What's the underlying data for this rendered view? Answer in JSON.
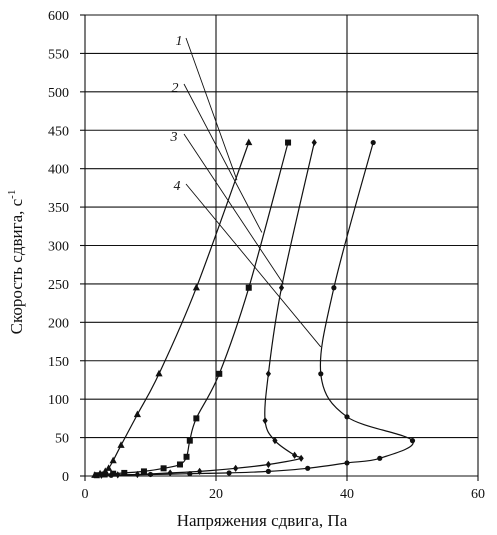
{
  "chart_data": {
    "type": "line",
    "xlabel": "Напряжения сдвига, Па",
    "ylabel": "Скорость сдвига, с",
    "ylabel_superscript": "-1",
    "xlim": [
      0,
      60
    ],
    "ylim": [
      0,
      600
    ],
    "xticks": [
      "0",
      "20",
      "40",
      "60"
    ],
    "yticks": [
      "0",
      "50",
      "100",
      "150",
      "200",
      "250",
      "300",
      "350",
      "400",
      "450",
      "500",
      "550",
      "600"
    ],
    "grid": "horizontal and vertical",
    "series": [
      {
        "name": "1",
        "marker": "triangle",
        "points": [
          [
            1.5,
            1
          ],
          [
            2.3,
            3
          ],
          [
            3.1,
            6
          ],
          [
            3.6,
            10
          ],
          [
            4.3,
            20
          ],
          [
            5.5,
            40
          ],
          [
            8,
            80
          ],
          [
            11.3,
            133
          ],
          [
            17,
            245
          ],
          [
            25,
            434
          ]
        ]
      },
      {
        "name": "2",
        "marker": "square",
        "points": [
          [
            1.8,
            1
          ],
          [
            3,
            2
          ],
          [
            4.3,
            3
          ],
          [
            6,
            4
          ],
          [
            9,
            6
          ],
          [
            12,
            10
          ],
          [
            14.5,
            15
          ],
          [
            15.5,
            25
          ],
          [
            16,
            46
          ],
          [
            17,
            75
          ],
          [
            20.5,
            133
          ],
          [
            25,
            245
          ],
          [
            31,
            434
          ]
        ]
      },
      {
        "name": "3",
        "marker": "diamond",
        "points": [
          [
            2.5,
            1
          ],
          [
            5,
            1.5
          ],
          [
            8,
            2
          ],
          [
            13,
            4
          ],
          [
            17.5,
            6
          ],
          [
            23,
            10
          ],
          [
            28,
            15
          ],
          [
            33,
            23
          ],
          [
            32,
            27
          ],
          [
            29,
            46
          ],
          [
            27.5,
            72
          ],
          [
            28,
            133
          ],
          [
            30,
            245
          ],
          [
            35,
            434
          ]
        ]
      },
      {
        "name": "4",
        "marker": "circle",
        "points": [
          [
            4,
            1
          ],
          [
            10,
            2
          ],
          [
            16,
            3
          ],
          [
            22,
            4
          ],
          [
            28,
            6
          ],
          [
            34,
            10
          ],
          [
            40,
            17
          ],
          [
            45,
            23
          ],
          [
            50,
            46
          ],
          [
            40,
            77
          ],
          [
            36,
            133
          ],
          [
            38,
            245
          ],
          [
            44,
            434
          ]
        ]
      }
    ],
    "callouts": [
      "1",
      "2",
      "3",
      "4"
    ]
  }
}
